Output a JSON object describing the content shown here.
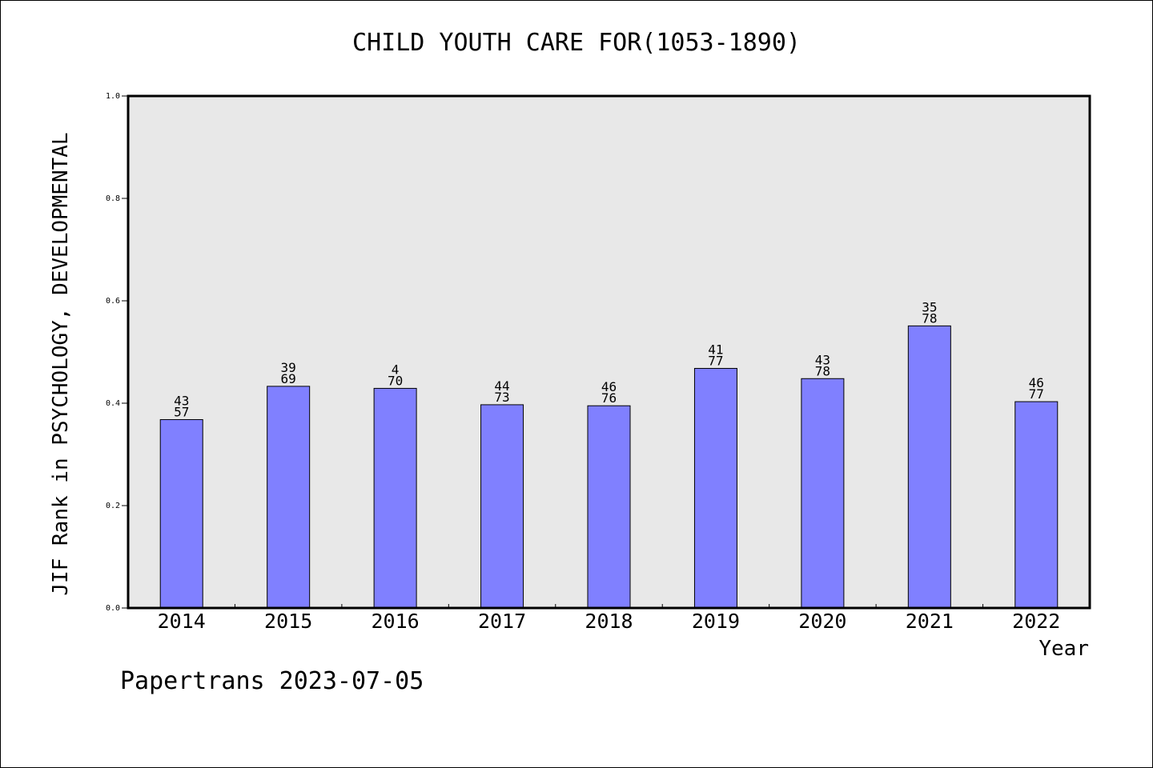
{
  "chart_data": {
    "type": "bar",
    "title": "CHILD YOUTH CARE FOR(1053-1890)",
    "xlabel": "Year",
    "ylabel": "JIF Rank in PSYCHOLOGY, DEVELOPMENTAL",
    "footer": "Papertrans 2023-07-05",
    "categories": [
      "2014",
      "2015",
      "2016",
      "2017",
      "2018",
      "2019",
      "2020",
      "2021",
      "2022"
    ],
    "values": [
      0.368,
      0.433,
      0.429,
      0.397,
      0.395,
      0.468,
      0.448,
      0.551,
      0.403
    ],
    "bar_labels": [
      [
        "43",
        "57"
      ],
      [
        "39",
        "69"
      ],
      [
        "4",
        "70"
      ],
      [
        "44",
        "73"
      ],
      [
        "46",
        "76"
      ],
      [
        "41",
        "77"
      ],
      [
        "43",
        "78"
      ],
      [
        "35",
        "78"
      ],
      [
        "46",
        "77"
      ]
    ],
    "yticks": [
      "0.0",
      "0.2",
      "0.4",
      "0.6",
      "0.8",
      "1.0"
    ],
    "ylim": [
      0,
      1.0
    ],
    "grid": false,
    "legend": "none",
    "colors": {
      "bar": "#8080ff",
      "plot_bg": "#e8e8e8",
      "axis": "#000000"
    }
  }
}
